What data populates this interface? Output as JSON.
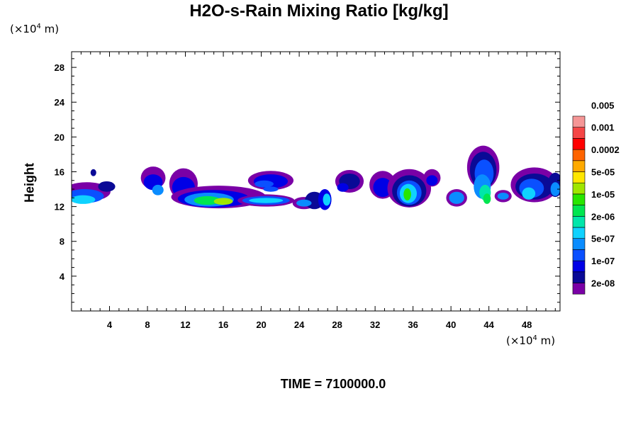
{
  "chart_data": {
    "type": "heatmap",
    "title": "H2O-s-Rain Mixing Ratio [kg/kg]",
    "ylabel": "Height",
    "x_unit": "(×10",
    "x_unit_exp": "4",
    "x_unit_tail": " m)",
    "y_unit": "(×10",
    "y_unit_exp": "4",
    "y_unit_tail": " m)",
    "xlim": [
      0,
      51.5
    ],
    "ylim": [
      0,
      29.8
    ],
    "x_ticks": [
      4,
      8,
      12,
      16,
      20,
      24,
      28,
      32,
      36,
      40,
      44,
      48
    ],
    "y_ticks": [
      4,
      8,
      12,
      16,
      20,
      24,
      28
    ],
    "footer": "TIME = 7100000.0",
    "colorbar": {
      "colors": [
        "#7a00a6",
        "#0a0a96",
        "#0000e6",
        "#0a50ff",
        "#0a8cff",
        "#0fd2ff",
        "#00e6aa",
        "#00e650",
        "#28e600",
        "#a0e600",
        "#ffe600",
        "#ffaa00",
        "#ff6400",
        "#ff0000",
        "#f54646",
        "#f59696"
      ],
      "labels": [
        "2e-08",
        "1e-07",
        "5e-07",
        "2e-06",
        "1e-05",
        "5e-05",
        "0.0002",
        "0.001",
        "0.005"
      ]
    },
    "regions": [
      {
        "x": [
          0,
          4.2
        ],
        "y": [
          12,
          15
        ],
        "max_level": 5
      },
      {
        "x": [
          2,
          2.5
        ],
        "y": [
          15.4,
          16.4
        ],
        "max_level": 1
      },
      {
        "x": [
          7,
          28
        ],
        "y": [
          11.8,
          16.6
        ],
        "max_level": 9
      },
      {
        "x": [
          18.5,
          23.5
        ],
        "y": [
          13.8,
          16.2
        ],
        "max_level": 3
      },
      {
        "x": [
          27,
          31
        ],
        "y": [
          13.5,
          16.4
        ],
        "max_level": 2
      },
      {
        "x": [
          31,
          39.5
        ],
        "y": [
          11.7,
          16.6
        ],
        "max_level": 8
      },
      {
        "x": [
          39.5,
          51.5
        ],
        "y": [
          11.7,
          18.9
        ],
        "max_level": 7
      }
    ]
  }
}
